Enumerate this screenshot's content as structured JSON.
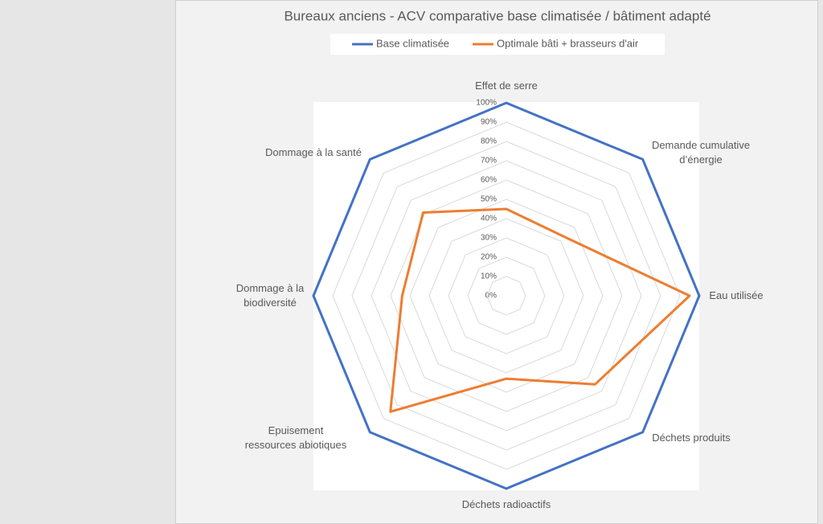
{
  "chart_data": {
    "type": "radar",
    "title": "Bureaux anciens - ACV comparative base climatisée / bâtiment adapté",
    "categories": [
      "Effet de serre",
      "Demande cumulative d’énergie",
      "Eau utilisée",
      "Déchets produits",
      "Déchets radioactifs",
      "Epuisement ressources abiotiques",
      "Dommage à la biodiversité",
      "Dommage à la santé"
    ],
    "series": [
      {
        "name": "Base climatisée",
        "color": "#4472c4",
        "values": [
          100,
          100,
          100,
          100,
          100,
          100,
          100,
          100
        ]
      },
      {
        "name": "Optimale bâti + brasseurs d'air",
        "color": "#ed7d31",
        "values": [
          45,
          43,
          95,
          65,
          43,
          85,
          54,
          61
        ]
      }
    ],
    "rlim": [
      0,
      100
    ],
    "rticks": [
      {
        "value": 0,
        "label": "0%"
      },
      {
        "value": 10,
        "label": "10%"
      },
      {
        "value": 20,
        "label": "20%"
      },
      {
        "value": 30,
        "label": "30%"
      },
      {
        "value": 40,
        "label": "40%"
      },
      {
        "value": 50,
        "label": "50%"
      },
      {
        "value": 60,
        "label": "60%"
      },
      {
        "value": 70,
        "label": "70%"
      },
      {
        "value": 80,
        "label": "80%"
      },
      {
        "value": 90,
        "label": "90%"
      },
      {
        "value": 100,
        "label": "100%"
      }
    ],
    "grid": true,
    "legend": "top"
  }
}
